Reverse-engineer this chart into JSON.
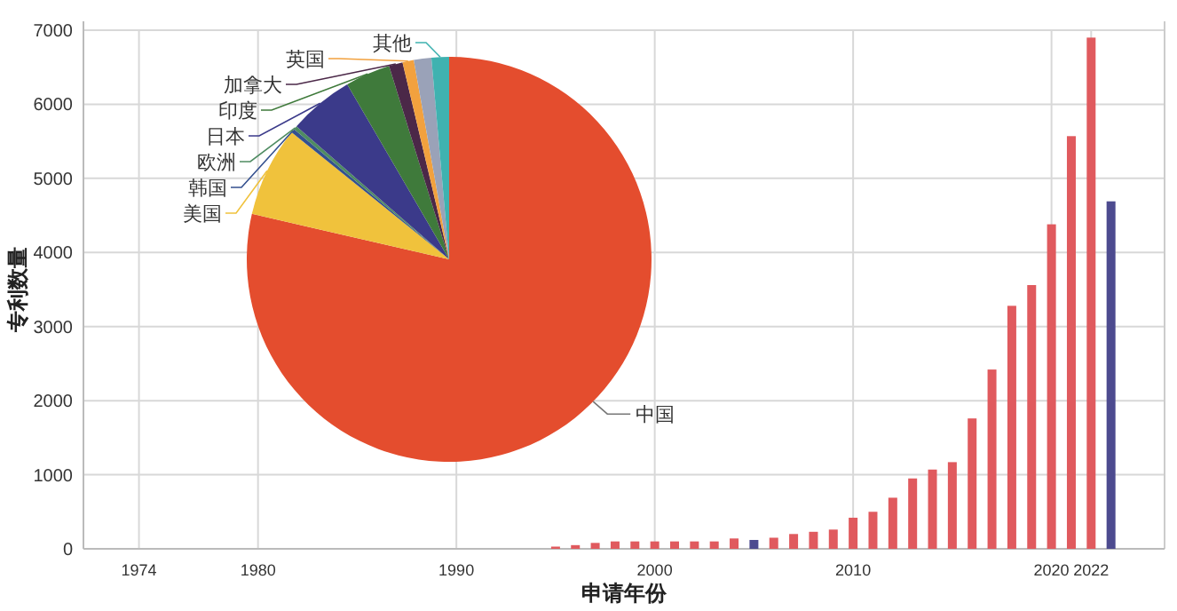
{
  "chart_data": [
    {
      "type": "bar",
      "xlabel": "申请年份",
      "ylabel": "专利数量",
      "x": [
        1995,
        1996,
        1997,
        1998,
        1999,
        2000,
        2001,
        2002,
        2003,
        2004,
        2005,
        2006,
        2007,
        2008,
        2009,
        2010,
        2011,
        2012,
        2013,
        2014,
        2015,
        2016,
        2017,
        2018,
        2019,
        2020,
        2021,
        2022,
        2023
      ],
      "values": [
        30,
        50,
        80,
        100,
        100,
        100,
        100,
        100,
        100,
        140,
        120,
        150,
        200,
        230,
        260,
        420,
        500,
        690,
        950,
        1070,
        1170,
        1760,
        2420,
        3280,
        3560,
        4380,
        5570,
        6900,
        4690
      ],
      "colors": [
        "#e05a5e",
        "#e05a5e",
        "#e05a5e",
        "#e05a5e",
        "#e05a5e",
        "#e05a5e",
        "#e05a5e",
        "#e05a5e",
        "#e05a5e",
        "#e05a5e",
        "#4d4b8f",
        "#e05a5e",
        "#e05a5e",
        "#e05a5e",
        "#e05a5e",
        "#e05a5e",
        "#e05a5e",
        "#e05a5e",
        "#e05a5e",
        "#e05a5e",
        "#e05a5e",
        "#e05a5e",
        "#e05a5e",
        "#e05a5e",
        "#e05a5e",
        "#e05a5e",
        "#e05a5e",
        "#e05a5e",
        "#4d4b8f"
      ],
      "xlim": [
        1971.2,
        2025.7
      ],
      "xticks": [
        1974,
        1980,
        1990,
        2000,
        2010,
        2020,
        2022
      ],
      "ylim": [
        0,
        7000
      ],
      "yticks": [
        0,
        1000,
        2000,
        3000,
        4000,
        5000,
        6000,
        7000
      ],
      "grid": true
    },
    {
      "type": "pie",
      "categories": [
        "中国",
        "美国",
        "韩国",
        "欧洲",
        "日本",
        "印度",
        "加拿大",
        "英国",
        null,
        "其他"
      ],
      "values": [
        78.6,
        7.2,
        0.3,
        0.3,
        5.2,
        3.6,
        1.1,
        0.9,
        1.4,
        1.4
      ],
      "colors": [
        "#e44d2e",
        "#f0c23c",
        "#34508f",
        "#4f8c62",
        "#3b3a8a",
        "#3f7a3b",
        "#4b2848",
        "#f2a13e",
        "#9aa2b8",
        "#3fb2b0"
      ]
    }
  ]
}
